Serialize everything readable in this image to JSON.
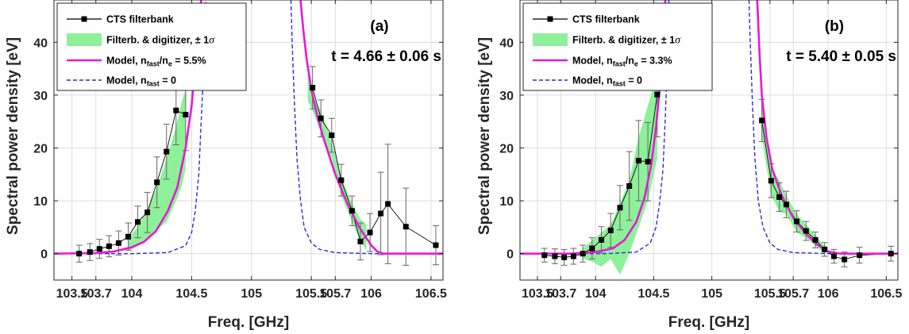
{
  "chart_data": [
    {
      "type": "line",
      "panel_label": "(a)",
      "time_label": "t = 4.66 ± 0.06 s",
      "xlabel": "Freq. [GHz]",
      "ylabel": "Spectral power density [eV]",
      "xlim": [
        103.35,
        106.6
      ],
      "ylim": [
        -5,
        48
      ],
      "x_ticks": [
        103.5,
        103.7,
        104,
        104.5,
        105,
        105.5,
        105.7,
        106,
        106.5
      ],
      "x_tick_labels": [
        "103.5",
        "103.7",
        "104",
        "104.5",
        "105",
        "105.5",
        "105.7",
        "106",
        "106.5"
      ],
      "y_ticks": [
        0,
        10,
        20,
        30,
        40
      ],
      "y_tick_labels": [
        "0",
        "10",
        "20",
        "30",
        "40"
      ],
      "grid": true,
      "legend": {
        "location": "top-left",
        "entries": [
          {
            "kind": "marker-line",
            "parts": [
              {
                "t": "CTS filterbank"
              }
            ]
          },
          {
            "kind": "band",
            "parts": [
              {
                "t": "Filterb. & digitizer, ± 1"
              },
              {
                "t": "σ",
                "italic": true
              }
            ]
          },
          {
            "kind": "model",
            "parts": [
              {
                "t": "Model, n"
              },
              {
                "t": "fast",
                "sub": true
              },
              {
                "t": "/n"
              },
              {
                "t": "e",
                "sub": true
              },
              {
                "t": " = 5.5%"
              }
            ]
          },
          {
            "kind": "dashed",
            "parts": [
              {
                "t": "Model, n"
              },
              {
                "t": "fast",
                "sub": true
              },
              {
                "t": " = 0"
              }
            ]
          }
        ]
      },
      "colors": {
        "cts": "#000000",
        "band": "#8ff09a",
        "model": "#e619d6",
        "model_zero": "#2a2ad9"
      },
      "series": [
        {
          "name": "CTS filterbank",
          "role": "cts",
          "segments": [
            {
              "x": [
                103.56,
                103.65,
                103.73,
                103.81,
                103.89,
                103.97,
                104.05,
                104.13,
                104.21,
                104.29,
                104.37,
                104.45
              ],
              "y": [
                0.0,
                0.3,
                0.9,
                1.4,
                2.0,
                3.2,
                6.0,
                7.8,
                13.5,
                19.3,
                27.1,
                26.3
              ],
              "err": [
                1.6,
                1.6,
                1.8,
                2.0,
                2.3,
                2.6,
                3.0,
                3.8,
                4.8,
                5.2,
                6.5,
                6.8
              ]
            },
            {
              "x": [
                105.51,
                105.58,
                105.67,
                105.75,
                105.84,
                105.91,
                105.99,
                106.08,
                106.14,
                106.29,
                106.54
              ],
              "y": [
                31.4,
                25.6,
                22.4,
                13.9,
                8.1,
                2.3,
                4.0,
                7.6,
                9.4,
                5.1,
                1.6
              ],
              "err": [
                4.0,
                3.5,
                3.2,
                3.0,
                2.8,
                3.5,
                3.6,
                7.8,
                11.3,
                7.3,
                3.7
              ]
            }
          ]
        },
        {
          "name": "Filterb. & digitizer, ± 1σ",
          "role": "band",
          "segments": [
            {
              "x": [
                103.97,
                104.05,
                104.13,
                104.21,
                104.29,
                104.37,
                104.42,
                104.45
              ],
              "upper": [
                3.0,
                5.0,
                8.5,
                12.5,
                18.0,
                24.0,
                29.0,
                31.0
              ],
              "lower": [
                0.5,
                1.5,
                3.0,
                4.5,
                6.0,
                10.0,
                13.0,
                16.0
              ]
            },
            {
              "x": [
                105.47,
                105.51,
                105.58,
                105.67,
                105.75,
                105.84,
                105.91,
                105.96
              ],
              "upper": [
                34.0,
                30.0,
                27.0,
                21.0,
                14.5,
                9.5,
                6.5,
                5.5
              ],
              "lower": [
                29.0,
                27.0,
                23.0,
                18.0,
                11.0,
                6.0,
                2.5,
                0.5
              ]
            }
          ]
        },
        {
          "name": "Model, nfast/ne = 5.5%",
          "role": "model",
          "segments": [
            {
              "x": [
                103.35,
                103.7,
                103.85,
                104.0,
                104.1,
                104.2,
                104.3,
                104.38,
                104.45,
                104.5,
                104.53,
                104.56,
                104.58
              ],
              "y": [
                0.0,
                0.1,
                0.4,
                1.2,
                2.2,
                4.2,
                8.0,
                12.5,
                20.0,
                28.0,
                36.0,
                44.0,
                48.0
              ]
            },
            {
              "x": [
                105.41,
                105.43,
                105.46,
                105.5,
                105.55,
                105.6,
                105.7,
                105.8,
                105.9,
                106.0,
                106.05,
                106.1,
                106.6
              ],
              "y": [
                48.0,
                43.0,
                37.0,
                31.0,
                26.0,
                22.0,
                15.0,
                9.5,
                5.0,
                1.6,
                0.4,
                0.0,
                0.0
              ]
            }
          ]
        },
        {
          "name": "Model, nfast = 0",
          "role": "model_zero",
          "segments": [
            {
              "x": [
                103.35,
                104.0,
                104.3,
                104.45,
                104.5,
                104.53,
                104.56,
                104.58,
                104.6,
                104.61,
                104.62
              ],
              "y": [
                0.0,
                0.0,
                0.2,
                1.5,
                4.0,
                8.0,
                15.0,
                25.0,
                35.0,
                42.0,
                48.0
              ]
            },
            {
              "x": [
                105.33,
                105.34,
                105.36,
                105.38,
                105.41,
                105.44,
                105.5,
                105.57,
                105.7,
                106.0,
                106.6
              ],
              "y": [
                48.0,
                40.0,
                28.0,
                18.0,
                10.0,
                5.0,
                2.0,
                0.8,
                0.2,
                0.0,
                0.0
              ]
            }
          ]
        }
      ]
    },
    {
      "type": "line",
      "panel_label": "(b)",
      "time_label": "t = 5.40 ± 0.05 s",
      "xlabel": "Freq. [GHz]",
      "ylabel": "Spectral power density [eV]",
      "xlim": [
        103.35,
        106.6
      ],
      "ylim": [
        -5,
        48
      ],
      "x_ticks": [
        103.5,
        103.7,
        104,
        104.5,
        105,
        105.5,
        105.7,
        106,
        106.5
      ],
      "x_tick_labels": [
        "103.5",
        "103.7",
        "104",
        "104.5",
        "105",
        "105.5",
        "105.7",
        "106",
        "106.5"
      ],
      "y_ticks": [
        0,
        10,
        20,
        30,
        40
      ],
      "y_tick_labels": [
        "0",
        "10",
        "20",
        "30",
        "40"
      ],
      "grid": true,
      "legend": {
        "location": "top-left",
        "entries": [
          {
            "kind": "marker-line",
            "parts": [
              {
                "t": "CTS filterbank"
              }
            ]
          },
          {
            "kind": "band",
            "parts": [
              {
                "t": "Filterb. & digitizer, ± 1"
              },
              {
                "t": "σ",
                "italic": true
              }
            ]
          },
          {
            "kind": "model",
            "parts": [
              {
                "t": "Model, n"
              },
              {
                "t": "fast",
                "sub": true
              },
              {
                "t": "/n"
              },
              {
                "t": "e",
                "sub": true
              },
              {
                "t": " = 3.3%"
              }
            ]
          },
          {
            "kind": "dashed",
            "parts": [
              {
                "t": "Model, n"
              },
              {
                "t": "fast",
                "sub": true
              },
              {
                "t": " = 0"
              }
            ]
          }
        ]
      },
      "colors": {
        "cts": "#000000",
        "band": "#8ff09a",
        "model": "#e619d6",
        "model_zero": "#2a2ad9"
      },
      "series": [
        {
          "name": "CTS filterbank",
          "role": "cts",
          "segments": [
            {
              "x": [
                103.56,
                103.65,
                103.73,
                103.81,
                103.89,
                103.97,
                104.05,
                104.13,
                104.21,
                104.29,
                104.37,
                104.45,
                104.53
              ],
              "y": [
                -0.3,
                -0.5,
                -0.7,
                -0.5,
                0.0,
                1.0,
                2.6,
                4.4,
                8.7,
                12.8,
                17.6,
                17.4,
                30.1
              ],
              "err": [
                1.3,
                1.4,
                1.5,
                1.5,
                1.6,
                2.0,
                2.5,
                3.2,
                4.2,
                6.5,
                7.6,
                7.4,
                8.0
              ]
            },
            {
              "x": [
                105.43,
                105.51,
                105.58,
                105.64,
                105.73,
                105.81,
                105.89,
                105.97,
                106.05,
                106.14,
                106.27,
                106.54
              ],
              "y": [
                25.2,
                13.8,
                10.7,
                9.3,
                6.1,
                4.3,
                2.6,
                0.8,
                -0.5,
                -1.1,
                -0.3,
                0.0
              ],
              "err": [
                4.0,
                3.2,
                2.7,
                2.5,
                2.0,
                1.8,
                1.5,
                1.3,
                1.3,
                1.4,
                1.5,
                1.4
              ]
            }
          ]
        },
        {
          "name": "Filterb. & digitizer, ± 1σ",
          "role": "band",
          "segments": [
            {
              "x": [
                103.89,
                103.97,
                104.05,
                104.13,
                104.21,
                104.29,
                104.37,
                104.45,
                104.53
              ],
              "upper": [
                1.0,
                2.5,
                4.0,
                5.5,
                9.5,
                14.0,
                22.0,
                28.0,
                34.0
              ],
              "lower": [
                -1.0,
                -1.5,
                -2.5,
                -1.0,
                -4.0,
                0.0,
                5.0,
                10.0,
                18.0
              ]
            },
            {
              "x": [
                105.43,
                105.51,
                105.58,
                105.64,
                105.73,
                105.81,
                105.89,
                105.97
              ],
              "upper": [
                28.0,
                16.0,
                14.0,
                11.0,
                7.5,
                5.5,
                3.5,
                1.5
              ],
              "lower": [
                22.0,
                11.0,
                8.0,
                7.5,
                4.0,
                3.0,
                1.5,
                0.0
              ]
            }
          ]
        },
        {
          "name": "Model, nfast/ne = 3.3%",
          "role": "model",
          "segments": [
            {
              "x": [
                103.35,
                103.8,
                104.0,
                104.15,
                104.25,
                104.35,
                104.42,
                104.48,
                104.52,
                104.55,
                104.58,
                104.6
              ],
              "y": [
                0.0,
                0.0,
                0.3,
                1.0,
                2.6,
                6.0,
                10.5,
                17.0,
                24.0,
                31.0,
                40.0,
                48.0
              ]
            },
            {
              "x": [
                105.39,
                105.41,
                105.43,
                105.47,
                105.52,
                105.6,
                105.7,
                105.8,
                105.9,
                106.0,
                106.1,
                106.6
              ],
              "y": [
                48.0,
                38.0,
                30.0,
                22.0,
                16.0,
                11.0,
                6.8,
                4.0,
                1.8,
                0.4,
                0.0,
                0.0
              ]
            }
          ]
        },
        {
          "name": "Model, nfast = 0",
          "role": "model_zero",
          "segments": [
            {
              "x": [
                103.35,
                104.1,
                104.35,
                104.47,
                104.52,
                104.55,
                104.58,
                104.6,
                104.62,
                104.63
              ],
              "y": [
                0.0,
                0.0,
                0.3,
                2.0,
                5.0,
                9.5,
                16.0,
                26.0,
                38.0,
                48.0
              ]
            },
            {
              "x": [
                105.32,
                105.33,
                105.35,
                105.37,
                105.4,
                105.44,
                105.5,
                105.57,
                105.7,
                106.0,
                106.6
              ],
              "y": [
                48.0,
                40.0,
                28.0,
                18.0,
                10.0,
                5.0,
                2.0,
                0.8,
                0.2,
                0.0,
                0.0
              ]
            }
          ]
        }
      ]
    }
  ]
}
